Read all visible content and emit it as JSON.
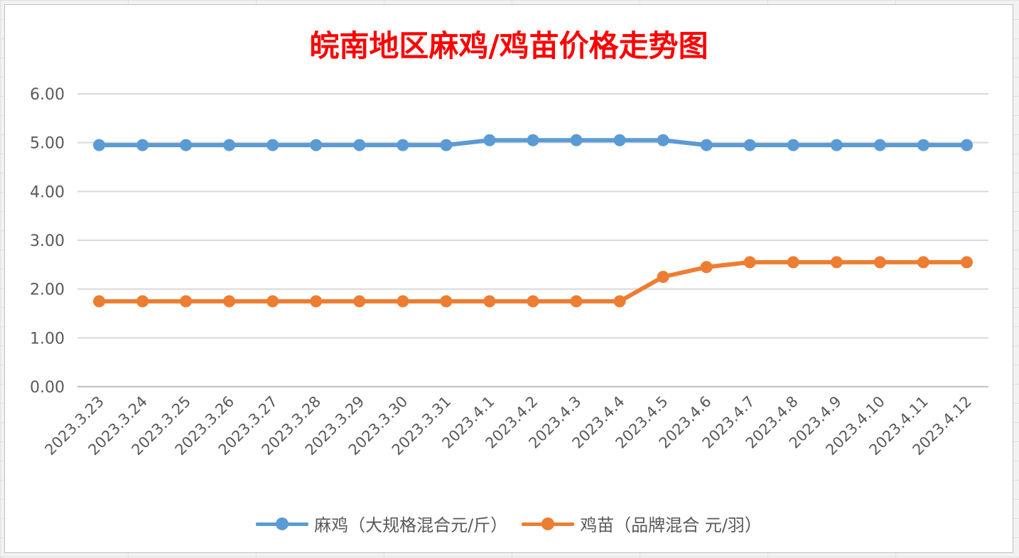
{
  "chart_data": {
    "type": "line",
    "title": "皖南地区麻鸡/鸡苗价格走势图",
    "categories": [
      "2023.3.23",
      "2023.3.24",
      "2023.3.25",
      "2023.3.26",
      "2023.3.27",
      "2023.3.28",
      "2023.3.29",
      "2023.3.30",
      "2023.3.31",
      "2023.4.1",
      "2023.4.2",
      "2023.4.3",
      "2023.4.4",
      "2023.4.5",
      "2023.4.6",
      "2023.4.7",
      "2023.4.8",
      "2023.4.9",
      "2023.4.10",
      "2023.4.11",
      "2023.4.12"
    ],
    "series": [
      {
        "name": "麻鸡（大规格混合元/斤）",
        "color": "#5b9bd5",
        "values": [
          4.95,
          4.95,
          4.95,
          4.95,
          4.95,
          4.95,
          4.95,
          4.95,
          4.95,
          5.05,
          5.05,
          5.05,
          5.05,
          5.05,
          4.95,
          4.95,
          4.95,
          4.95,
          4.95,
          4.95,
          4.95
        ]
      },
      {
        "name": "鸡苗（品牌混合 元/羽）",
        "color": "#ed7d31",
        "values": [
          1.75,
          1.75,
          1.75,
          1.75,
          1.75,
          1.75,
          1.75,
          1.75,
          1.75,
          1.75,
          1.75,
          1.75,
          1.75,
          2.25,
          2.45,
          2.55,
          2.55,
          2.55,
          2.55,
          2.55,
          2.55
        ]
      }
    ],
    "ylim": [
      0,
      6
    ],
    "yticks": [
      "0.00",
      "1.00",
      "2.00",
      "3.00",
      "4.00",
      "5.00",
      "6.00"
    ],
    "grid": true,
    "legend": "bottom",
    "xlabel": "",
    "ylabel": ""
  }
}
